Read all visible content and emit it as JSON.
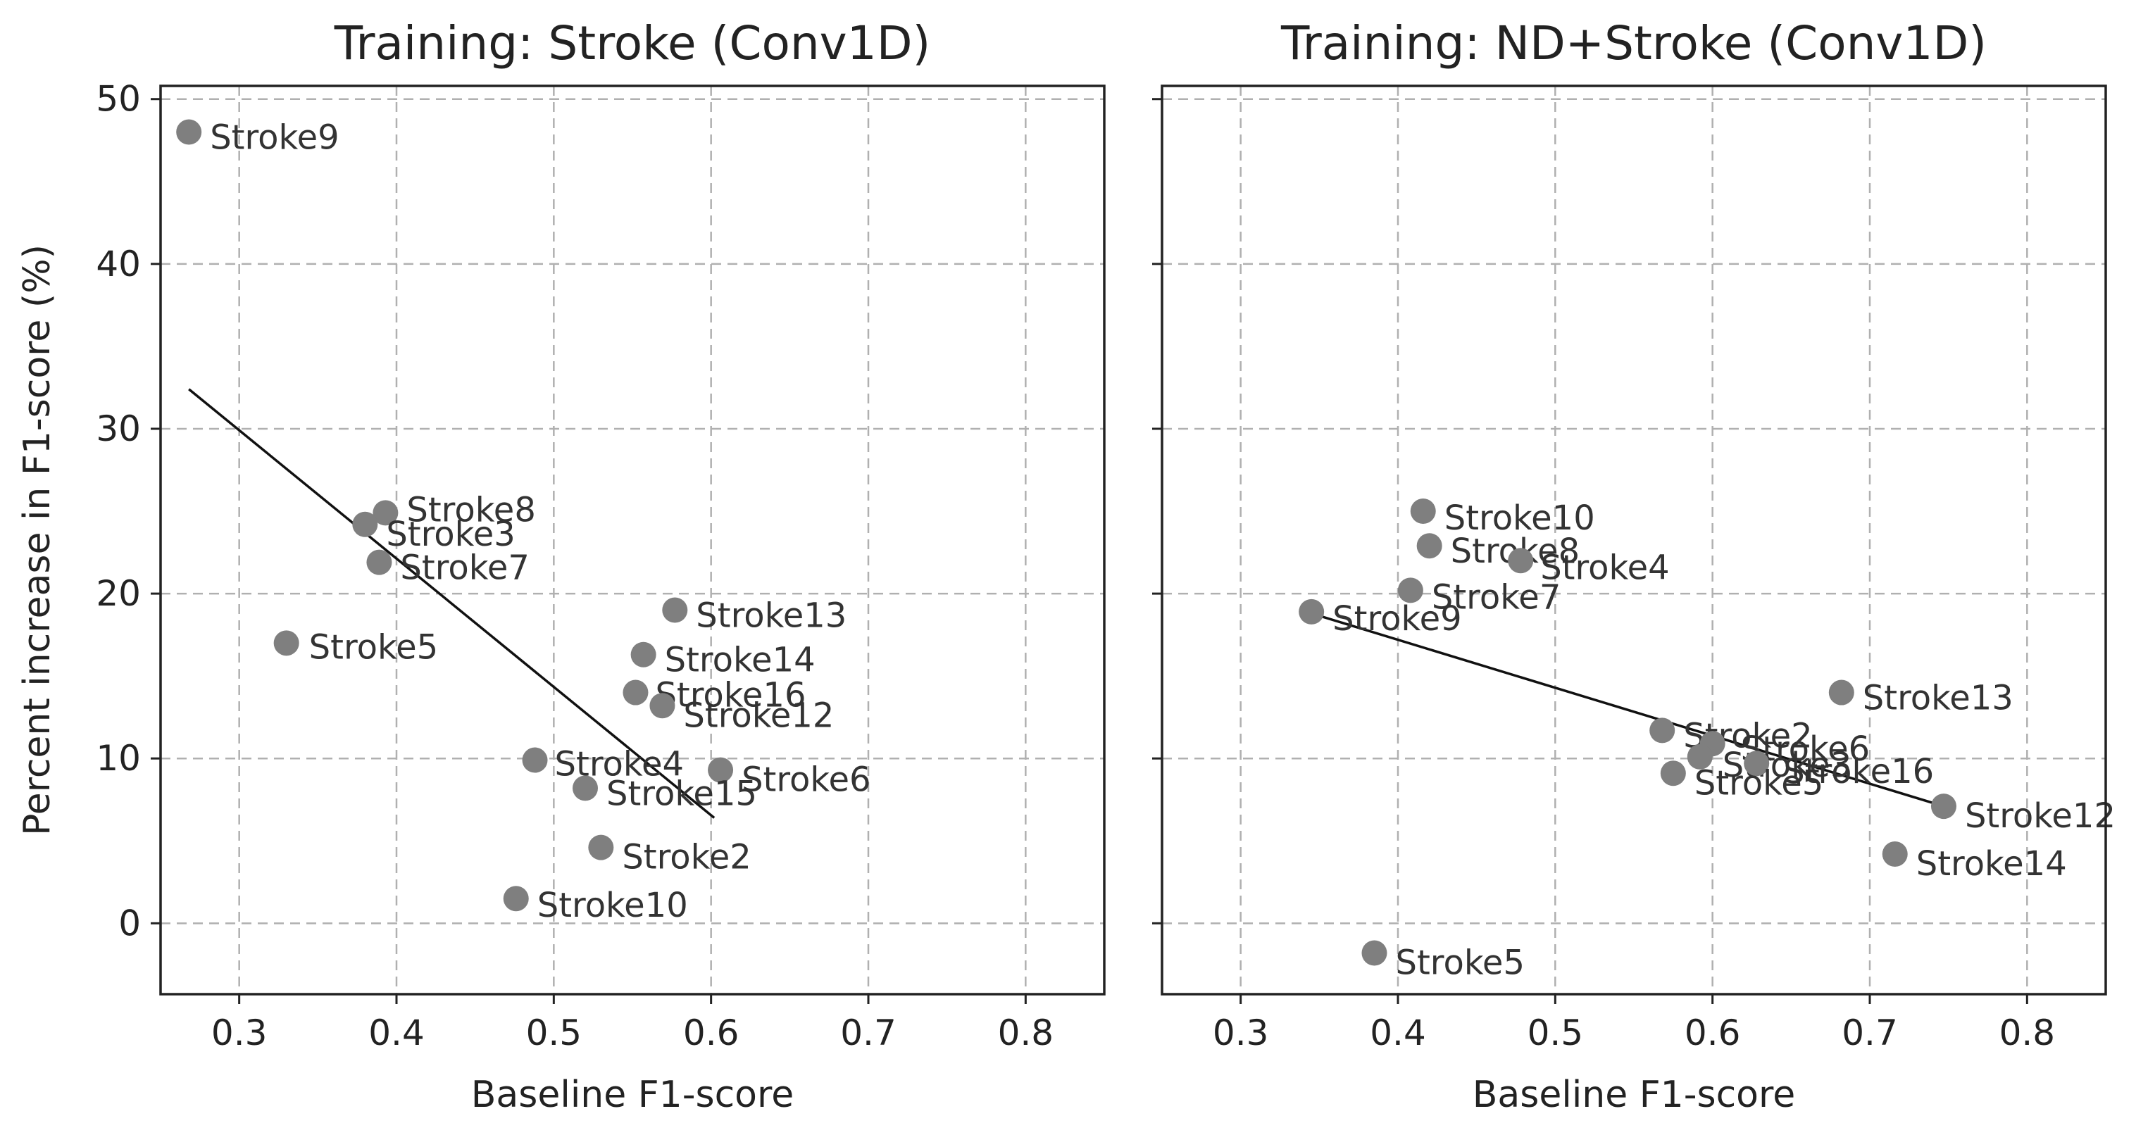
{
  "chart_data": [
    {
      "type": "scatter",
      "title": "Training: Stroke (Conv1D)",
      "xlabel": "Baseline F1-score",
      "ylabel": "Percent increase in F1-score (%)",
      "xlim": [
        0.25,
        0.85
      ],
      "ylim": [
        -4.3,
        50.8
      ],
      "xticks": [
        0.3,
        0.4,
        0.5,
        0.6,
        0.7,
        0.8
      ],
      "xtick_labels": [
        "0.3",
        "0.4",
        "0.5",
        "0.6",
        "0.7",
        "0.8"
      ],
      "yticks": [
        0,
        10,
        20,
        30,
        40,
        50
      ],
      "ytick_labels": [
        "0",
        "10",
        "20",
        "30",
        "40",
        "50"
      ],
      "grid": true,
      "marker_color": "#7f7f7f",
      "points": [
        {
          "label": "Stroke9",
          "x": 0.268,
          "y": 48.0
        },
        {
          "label": "Stroke8",
          "x": 0.393,
          "y": 24.9
        },
        {
          "label": "Stroke3",
          "x": 0.38,
          "y": 24.2
        },
        {
          "label": "Stroke7",
          "x": 0.389,
          "y": 21.9
        },
        {
          "label": "Stroke5",
          "x": 0.33,
          "y": 17.0
        },
        {
          "label": "Stroke13",
          "x": 0.577,
          "y": 19.0
        },
        {
          "label": "Stroke14",
          "x": 0.557,
          "y": 16.3
        },
        {
          "label": "Stroke16",
          "x": 0.552,
          "y": 14.0
        },
        {
          "label": "Stroke12",
          "x": 0.569,
          "y": 13.2
        },
        {
          "label": "Stroke4",
          "x": 0.488,
          "y": 9.9
        },
        {
          "label": "Stroke6",
          "x": 0.606,
          "y": 9.3
        },
        {
          "label": "Stroke15",
          "x": 0.52,
          "y": 8.2
        },
        {
          "label": "Stroke2",
          "x": 0.53,
          "y": 4.6
        },
        {
          "label": "Stroke10",
          "x": 0.476,
          "y": 1.5
        }
      ],
      "fit_line": {
        "x": [
          0.268,
          0.602
        ],
        "y": [
          32.4,
          6.4
        ]
      }
    },
    {
      "type": "scatter",
      "title": "Training: ND+Stroke (Conv1D)",
      "xlabel": "Baseline F1-score",
      "ylabel": "",
      "xlim": [
        0.25,
        0.85
      ],
      "ylim": [
        -4.3,
        50.8
      ],
      "xticks": [
        0.3,
        0.4,
        0.5,
        0.6,
        0.7,
        0.8
      ],
      "xtick_labels": [
        "0.3",
        "0.4",
        "0.5",
        "0.6",
        "0.7",
        "0.8"
      ],
      "yticks": [
        0,
        10,
        20,
        30,
        40,
        50
      ],
      "ytick_labels": [
        "",
        "",
        "",
        "",
        "",
        ""
      ],
      "grid": true,
      "marker_color": "#7f7f7f",
      "points": [
        {
          "label": "Stroke10",
          "x": 0.416,
          "y": 25.0
        },
        {
          "label": "Stroke8",
          "x": 0.42,
          "y": 22.9
        },
        {
          "label": "Stroke4",
          "x": 0.478,
          "y": 22.0
        },
        {
          "label": "Stroke7",
          "x": 0.408,
          "y": 20.2
        },
        {
          "label": "Stroke9",
          "x": 0.345,
          "y": 18.9
        },
        {
          "label": "Stroke13",
          "x": 0.682,
          "y": 14.0
        },
        {
          "label": "Stroke2",
          "x": 0.568,
          "y": 11.7
        },
        {
          "label": "Stroke6",
          "x": 0.6,
          "y": 10.9
        },
        {
          "label": "Stroke3",
          "x": 0.592,
          "y": 10.1
        },
        {
          "label": "Stroke16",
          "x": 0.628,
          "y": 9.7
        },
        {
          "label": "Stroke5",
          "x": 0.575,
          "y": 9.1
        },
        {
          "label": "Stroke12",
          "x": 0.747,
          "y": 7.1
        },
        {
          "label": "Stroke14",
          "x": 0.716,
          "y": 4.2
        },
        {
          "label": "Stroke5",
          "x": 0.385,
          "y": -1.8
        }
      ],
      "fit_line": {
        "x": [
          0.345,
          0.747
        ],
        "y": [
          18.8,
          7.1
        ]
      }
    }
  ]
}
